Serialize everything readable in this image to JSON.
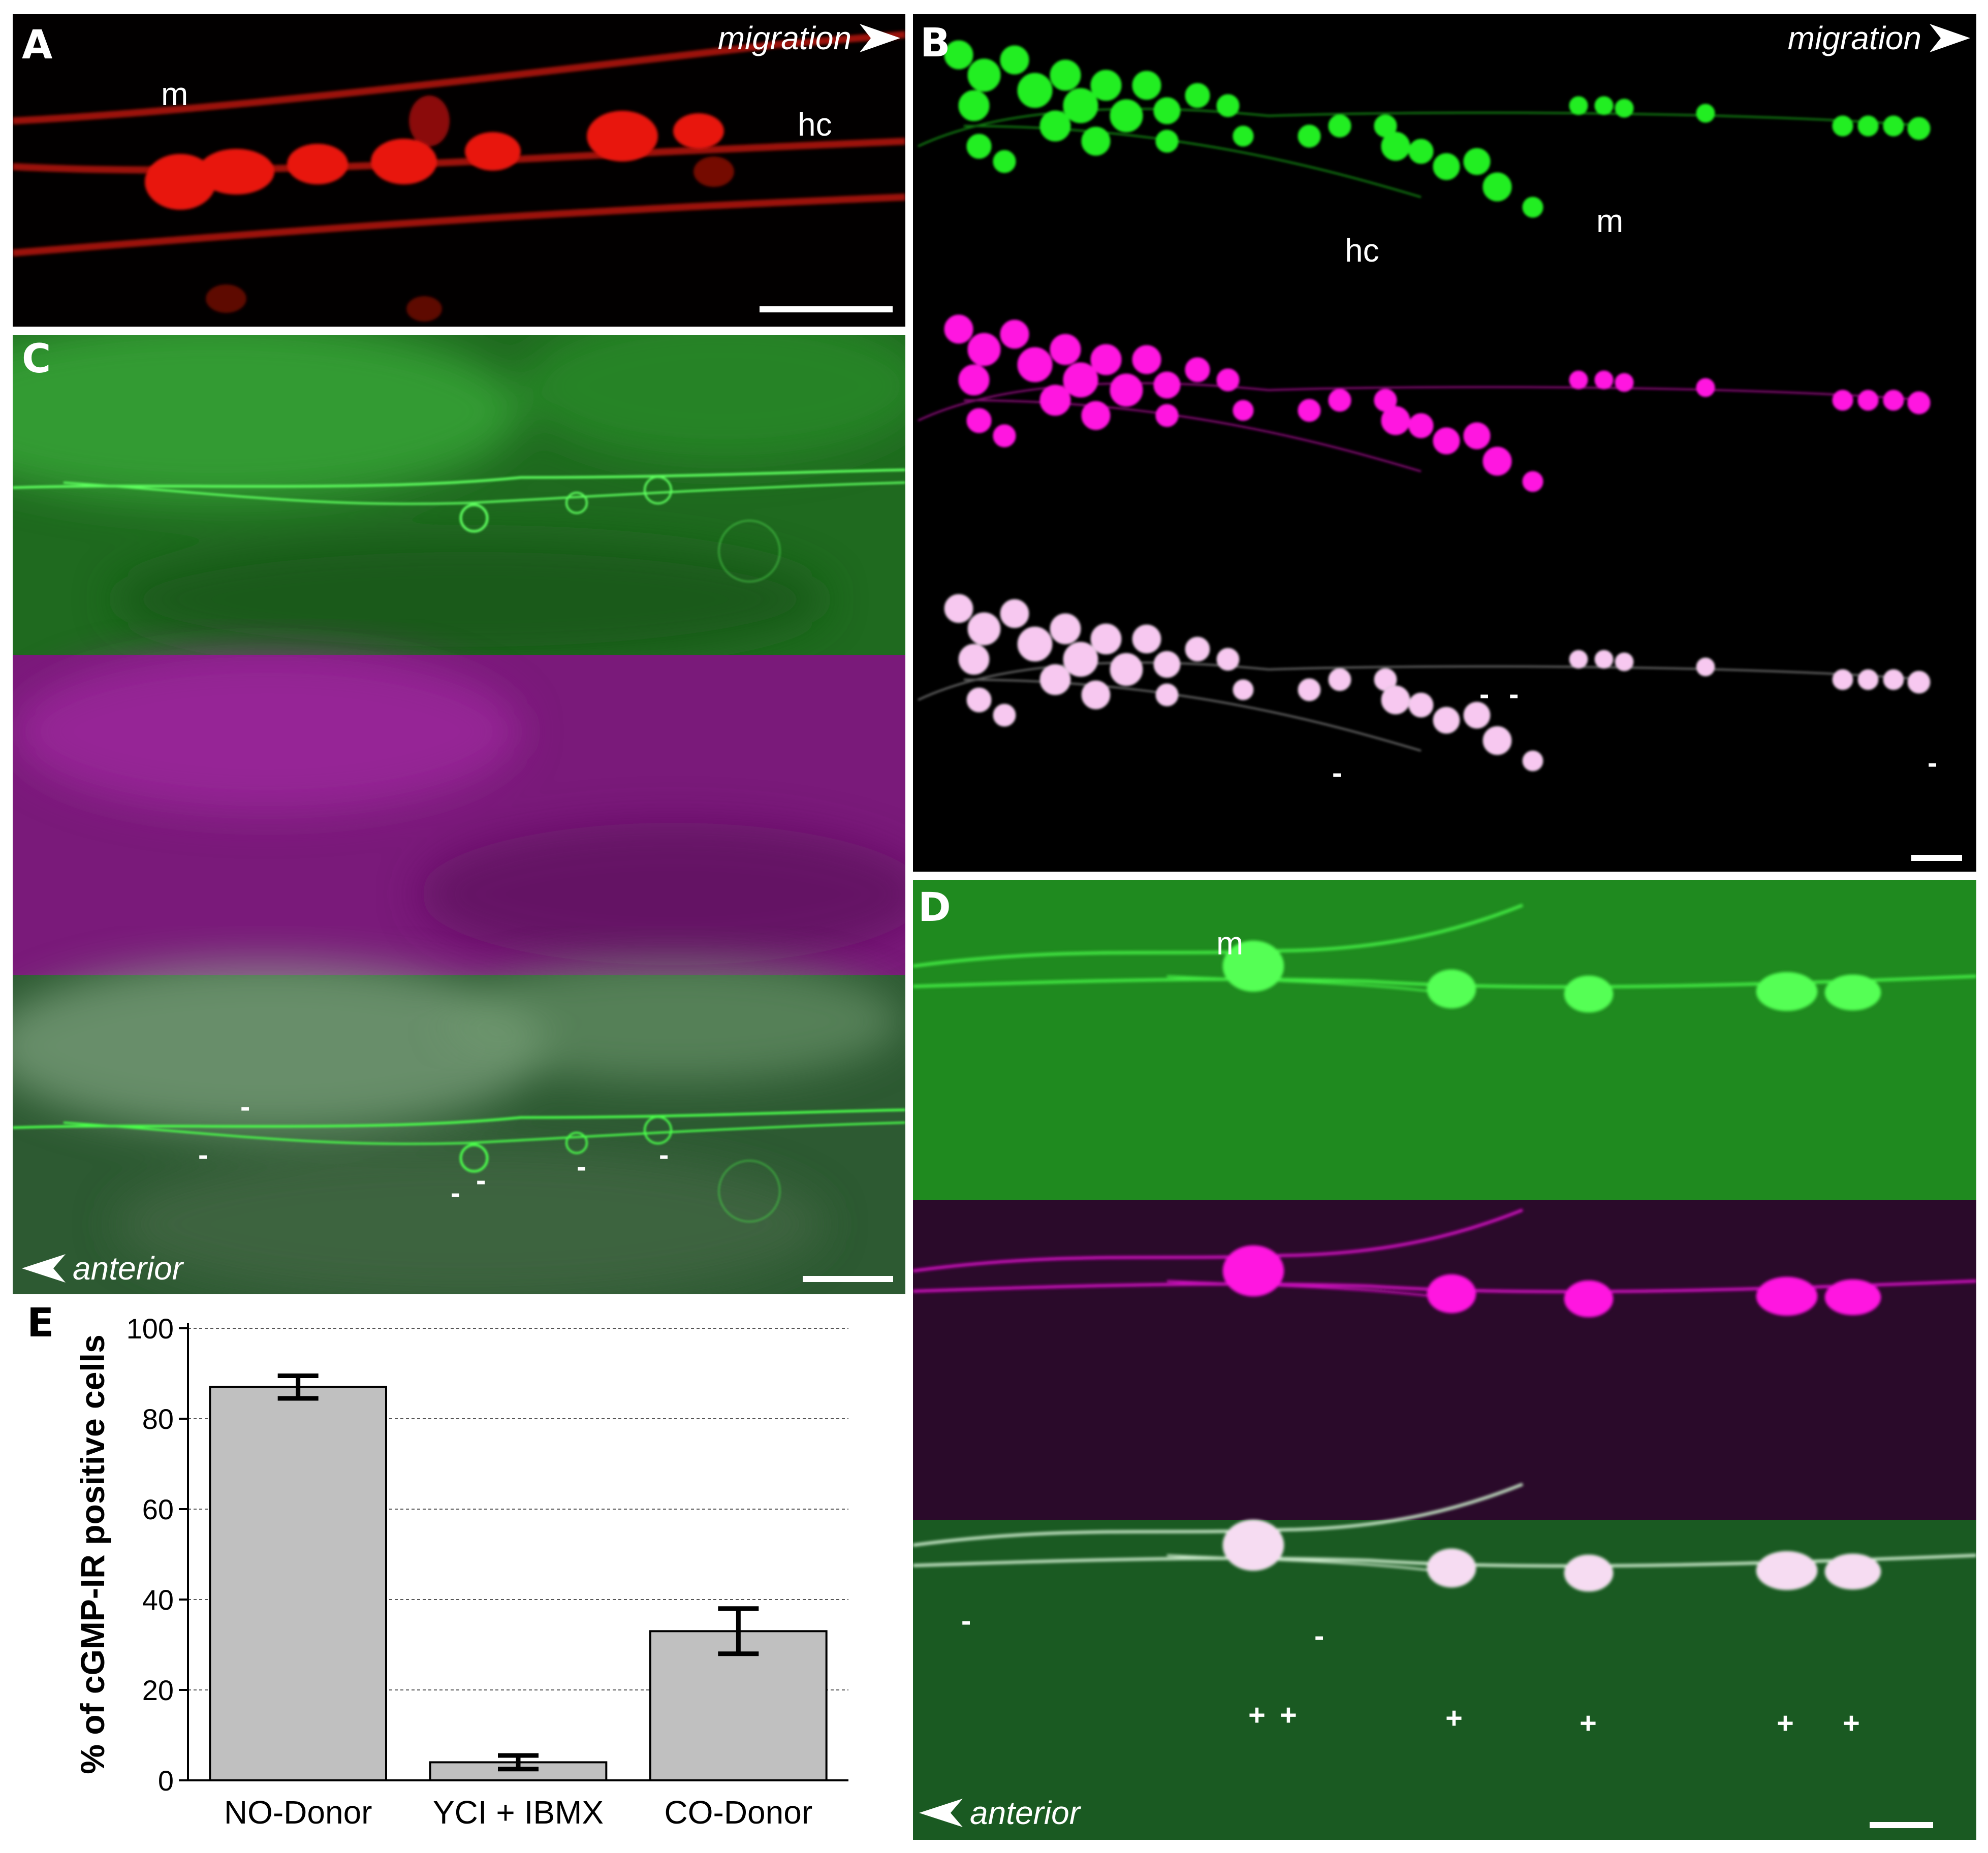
{
  "panels": {
    "A": {
      "label": "A",
      "direction": "migration",
      "tags": [
        "m",
        "hc"
      ]
    },
    "B": {
      "label": "B",
      "direction": "migration",
      "tags": [
        "hc",
        "m"
      ],
      "marks": [
        "-",
        "-",
        "-",
        "-"
      ]
    },
    "C": {
      "label": "C",
      "direction": "anterior",
      "marks": [
        "-",
        "-",
        "-",
        "-",
        "-",
        "-"
      ]
    },
    "D": {
      "label": "D",
      "tag": "m",
      "direction": "anterior",
      "marks_minus": [
        "-",
        "-"
      ],
      "marks_plus": [
        "+",
        "+",
        "+",
        "+",
        "+",
        "+"
      ]
    },
    "E": {
      "label": "E"
    }
  },
  "colors": {
    "red_channel": "#e8140c",
    "green_channel": "#22ee22",
    "magenta_channel": "#ff14e0",
    "merge_channel": "#f7c8f0",
    "bar_fill": "#c0c0c0"
  },
  "chart_data": {
    "type": "bar",
    "categories": [
      "NO-Donor",
      "YCI + IBMX",
      "CO-Donor"
    ],
    "values": [
      87,
      4,
      33
    ],
    "errors": [
      2.5,
      1.5,
      5
    ],
    "ylabel": "% of cGMP-IR positive cells",
    "xlabel": "",
    "ylim": [
      0,
      100
    ],
    "yticks": [
      0,
      20,
      40,
      60,
      80,
      100
    ],
    "grid": true
  }
}
